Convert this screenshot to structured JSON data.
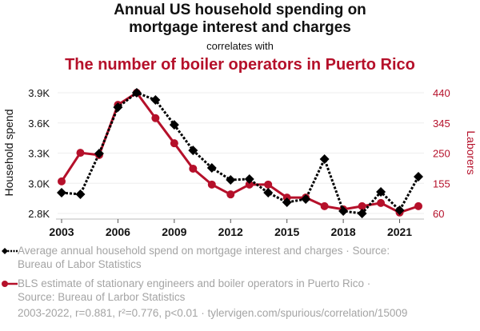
{
  "header": {
    "title": "Annual US household spending on mortgage interest and charges",
    "title_line1": "Annual US household spending on",
    "title_line2": "mortgage interest and charges",
    "subtitle": "correlates with",
    "title2": "The number of boiler operators in Puerto Rico"
  },
  "colors": {
    "series1": "#000000",
    "series2": "#b5102a",
    "grid": "#eeeeee",
    "axis": "#bbbbbb",
    "legend_text": "#a4a4a4"
  },
  "legend": {
    "items": [
      {
        "line1": "Average annual household spend on mortgage interest and charges · Source:",
        "line2": "Bureau of Labor Statistics"
      },
      {
        "line1": "BLS estimate of stationary engineers and boiler operators in Puerto Rico ·",
        "line2": "Source: Bureau of Larbor Statistics"
      }
    ]
  },
  "footer": "2003-2022, r=0.881, r²=0.776, p<0.01 · tylervigen.com/spurious/correlation/15009",
  "chart_data": {
    "type": "line",
    "title": "Annual US household spending on mortgage interest and charges correlates with The number of boiler operators in Puerto Rico",
    "x": [
      2003,
      2004,
      2005,
      2006,
      2007,
      2008,
      2009,
      2010,
      2011,
      2012,
      2013,
      2014,
      2015,
      2016,
      2017,
      2018,
      2019,
      2020,
      2021,
      2022
    ],
    "xlim": [
      2003,
      2022
    ],
    "xticks": [
      2003,
      2006,
      2009,
      2012,
      2015,
      2018,
      2021
    ],
    "xlabel": "",
    "ylabel_left": "Household spend",
    "ylabel_right": "Laborers",
    "ylim_left": [
      2750,
      3850
    ],
    "ylim_right": [
      60,
      440
    ],
    "yticks_left": [
      {
        "value": 2750,
        "label": "2.8K"
      },
      {
        "value": 3025,
        "label": "3.0K"
      },
      {
        "value": 3300,
        "label": "3.3K"
      },
      {
        "value": 3575,
        "label": "3.6K"
      },
      {
        "value": 3850,
        "label": "3.9K"
      }
    ],
    "yticks_right": [
      {
        "value": 60,
        "label": "60"
      },
      {
        "value": 155,
        "label": "155"
      },
      {
        "value": 250,
        "label": "250"
      },
      {
        "value": 345,
        "label": "345"
      },
      {
        "value": 440,
        "label": "440"
      }
    ],
    "grid": true,
    "legend_position": "bottom",
    "series": [
      {
        "name": "Average annual household spend on mortgage interest and charges",
        "axis": "left",
        "style": "dotted",
        "marker": "diamond",
        "values": [
          2939,
          2925,
          3296,
          3718,
          3850,
          3784,
          3558,
          3325,
          3165,
          3056,
          3063,
          2939,
          2852,
          2881,
          3245,
          2772,
          2750,
          2947,
          2779,
          3085
        ]
      },
      {
        "name": "BLS estimate of stationary engineers and boiler operators in Puerto Rico",
        "axis": "right",
        "style": "solid",
        "marker": "circle",
        "values": [
          161,
          251,
          244,
          402,
          440,
          360,
          281,
          201,
          151,
          120,
          151,
          151,
          110,
          110,
          83,
          73,
          83,
          93,
          63,
          83
        ]
      }
    ]
  }
}
